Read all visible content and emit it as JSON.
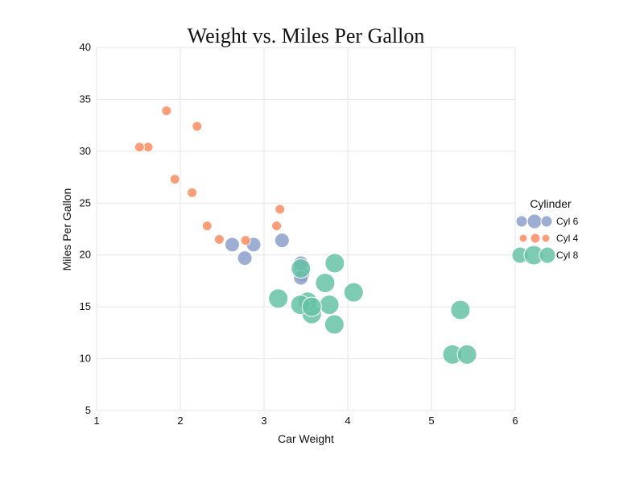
{
  "chart_data": {
    "type": "scatter",
    "title": "Weight vs. Miles Per Gallon",
    "xlabel": "Car Weight",
    "ylabel": "Miles Per Gallon",
    "xlim": [
      1,
      6
    ],
    "ylim": [
      5,
      40
    ],
    "x_ticks": [
      1,
      2,
      3,
      4,
      5,
      6
    ],
    "y_ticks": [
      5,
      10,
      15,
      20,
      25,
      30,
      35,
      40
    ],
    "grid": true,
    "legend": {
      "title": "Cylinder",
      "placement": "right"
    },
    "series": [
      {
        "name": "Cyl 6",
        "color": "#8da0cb",
        "points": [
          {
            "x": 2.62,
            "y": 21.0
          },
          {
            "x": 2.875,
            "y": 21.0
          },
          {
            "x": 3.215,
            "y": 21.4
          },
          {
            "x": 3.44,
            "y": 18.7
          },
          {
            "x": 3.46,
            "y": 18.1
          },
          {
            "x": 3.44,
            "y": 19.2
          },
          {
            "x": 3.44,
            "y": 17.8
          },
          {
            "x": 2.77,
            "y": 19.7
          }
        ]
      },
      {
        "name": "Cyl 4",
        "color": "#fc8d62",
        "points": [
          {
            "x": 2.32,
            "y": 22.8
          },
          {
            "x": 3.19,
            "y": 24.4
          },
          {
            "x": 3.15,
            "y": 22.8
          },
          {
            "x": 2.2,
            "y": 32.4
          },
          {
            "x": 1.615,
            "y": 30.4
          },
          {
            "x": 1.835,
            "y": 33.9
          },
          {
            "x": 2.465,
            "y": 21.5
          },
          {
            "x": 1.935,
            "y": 27.3
          },
          {
            "x": 2.14,
            "y": 26.0
          },
          {
            "x": 1.513,
            "y": 30.4
          },
          {
            "x": 2.78,
            "y": 21.4
          }
        ]
      },
      {
        "name": "Cyl 8",
        "color": "#66c2a5",
        "points": [
          {
            "x": 3.44,
            "y": 18.7
          },
          {
            "x": 3.57,
            "y": 14.3
          },
          {
            "x": 4.07,
            "y": 16.4
          },
          {
            "x": 3.73,
            "y": 17.3
          },
          {
            "x": 3.78,
            "y": 15.2
          },
          {
            "x": 5.25,
            "y": 10.4
          },
          {
            "x": 5.424,
            "y": 10.4
          },
          {
            "x": 5.345,
            "y": 14.7
          },
          {
            "x": 3.52,
            "y": 15.5
          },
          {
            "x": 3.435,
            "y": 15.2
          },
          {
            "x": 3.84,
            "y": 13.3
          },
          {
            "x": 3.845,
            "y": 19.2
          },
          {
            "x": 3.17,
            "y": 15.8
          },
          {
            "x": 3.57,
            "y": 15.0
          }
        ]
      }
    ]
  }
}
